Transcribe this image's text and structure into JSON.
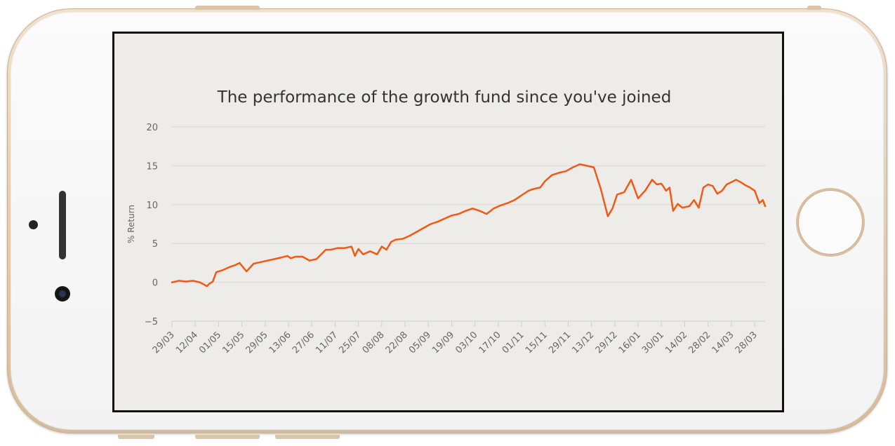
{
  "chart_data": {
    "type": "line",
    "title": "The performance of the growth fund since you've joined",
    "xlabel": "",
    "ylabel": "% Return",
    "ylim": [
      -5,
      20
    ],
    "yticks": [
      -5,
      0,
      5,
      10,
      15,
      20
    ],
    "grid": true,
    "legend": "none",
    "x_tick_labels": [
      "29/03",
      "12/04",
      "01/05",
      "15/05",
      "29/05",
      "13/06",
      "27/06",
      "11/07",
      "25/07",
      "08/08",
      "22/08",
      "05/09",
      "19/09",
      "03/10",
      "17/10",
      "01/11",
      "15/11",
      "29/11",
      "13/12",
      "29/12",
      "16/01",
      "30/01",
      "14/02",
      "28/02",
      "14/03",
      "28/03"
    ],
    "line_color": "#f05a16",
    "series": [
      {
        "color": "#f05a16",
        "x": [
          0,
          0.3,
          0.6,
          0.9,
          1.2,
          1.5,
          1.6,
          1.75,
          1.9,
          2.2,
          2.5,
          2.7,
          2.9,
          3.2,
          3.5,
          3.8,
          4.1,
          4.4,
          4.7,
          4.95,
          5.1,
          5.3,
          5.6,
          5.9,
          6.2,
          6.4,
          6.6,
          6.8,
          7.1,
          7.4,
          7.7,
          7.85,
          8.0,
          8.2,
          8.5,
          8.8,
          9.0,
          9.2,
          9.4,
          9.6,
          9.9,
          10.2,
          10.5,
          10.8,
          11.1,
          11.4,
          11.7,
          12.0,
          12.3,
          12.6,
          12.9,
          13.2,
          13.5,
          13.8,
          14.1,
          14.4,
          14.7,
          15.0,
          15.3,
          15.5,
          15.8,
          16.0,
          16.3,
          16.6,
          16.9,
          17.2,
          17.5,
          17.8,
          18.1,
          18.4,
          18.7,
          18.9,
          19.1,
          19.4,
          19.7,
          20.0,
          20.3,
          20.6,
          20.8,
          21.0,
          21.2,
          21.35,
          21.5,
          21.7,
          21.9,
          22.2,
          22.4,
          22.6,
          22.8,
          23.0,
          23.2,
          23.4,
          23.6,
          23.8,
          24.0,
          24.2,
          24.4,
          24.6,
          24.8,
          25.0,
          25.2,
          25.35,
          25.45
        ],
        "values": [
          0.0,
          0.2,
          0.1,
          0.2,
          0.0,
          -0.5,
          -0.2,
          0.1,
          1.3,
          1.6,
          2.0,
          2.2,
          2.5,
          1.4,
          2.4,
          2.6,
          2.8,
          3.0,
          3.2,
          3.4,
          3.1,
          3.3,
          3.3,
          2.8,
          3.0,
          3.6,
          4.2,
          4.2,
          4.4,
          4.4,
          4.6,
          3.4,
          4.3,
          3.6,
          4.0,
          3.6,
          4.6,
          4.2,
          5.2,
          5.5,
          5.6,
          6.0,
          6.5,
          7.0,
          7.5,
          7.8,
          8.2,
          8.6,
          8.8,
          9.2,
          9.5,
          9.2,
          8.8,
          9.5,
          9.9,
          10.2,
          10.6,
          11.2,
          11.8,
          12.0,
          12.2,
          13.0,
          13.8,
          14.1,
          14.3,
          14.8,
          15.2,
          15.0,
          14.8,
          12.0,
          8.5,
          9.5,
          11.3,
          11.6,
          13.2,
          10.8,
          11.8,
          13.2,
          12.6,
          12.7,
          11.8,
          12.2,
          9.2,
          10.1,
          9.6,
          9.8,
          10.6,
          9.6,
          12.2,
          12.6,
          12.4,
          11.4,
          11.8,
          12.6,
          12.9,
          13.2,
          12.9,
          12.5,
          12.2,
          11.8,
          10.2,
          10.6,
          9.8
        ]
      }
    ]
  }
}
